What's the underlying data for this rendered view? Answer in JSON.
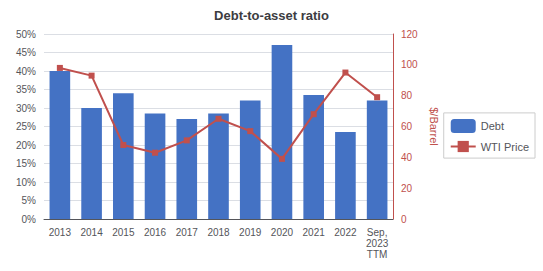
{
  "chart_data": {
    "type": "bar",
    "title": "Debt-to-asset ratio",
    "categories": [
      "2013",
      "2014",
      "2015",
      "2016",
      "2017",
      "2018",
      "2019",
      "2020",
      "2021",
      "2022",
      "Sep,\n2023\nTTM"
    ],
    "series": [
      {
        "name": "Debt",
        "type": "bar",
        "color": "#4472C4",
        "values": [
          0.4,
          0.3,
          0.34,
          0.285,
          0.27,
          0.285,
          0.32,
          0.47,
          0.335,
          0.235,
          0.32
        ]
      },
      {
        "name": "WTI Price",
        "type": "line",
        "color": "#C0504D",
        "marker": "square",
        "axis": "y2",
        "values": [
          98,
          93,
          48,
          43,
          51,
          65,
          57,
          39,
          68,
          95,
          79
        ]
      }
    ],
    "ylim": [
      0,
      0.5
    ],
    "yticks": [
      {
        "value": 0.0,
        "label": "0%"
      },
      {
        "value": 0.05,
        "label": "5%"
      },
      {
        "value": 0.1,
        "label": "10%"
      },
      {
        "value": 0.15,
        "label": "15%"
      },
      {
        "value": 0.2,
        "label": "20%"
      },
      {
        "value": 0.25,
        "label": "25%"
      },
      {
        "value": 0.3,
        "label": "30%"
      },
      {
        "value": 0.35,
        "label": "35%"
      },
      {
        "value": 0.4,
        "label": "40%"
      },
      {
        "value": 0.45,
        "label": "45%"
      },
      {
        "value": 0.5,
        "label": "50%"
      }
    ],
    "y2label": "$/Barrel",
    "y2lim": [
      0,
      120
    ],
    "y2ticks": [
      0,
      20,
      40,
      60,
      80,
      100,
      120
    ],
    "grid": true,
    "legend": "right"
  }
}
